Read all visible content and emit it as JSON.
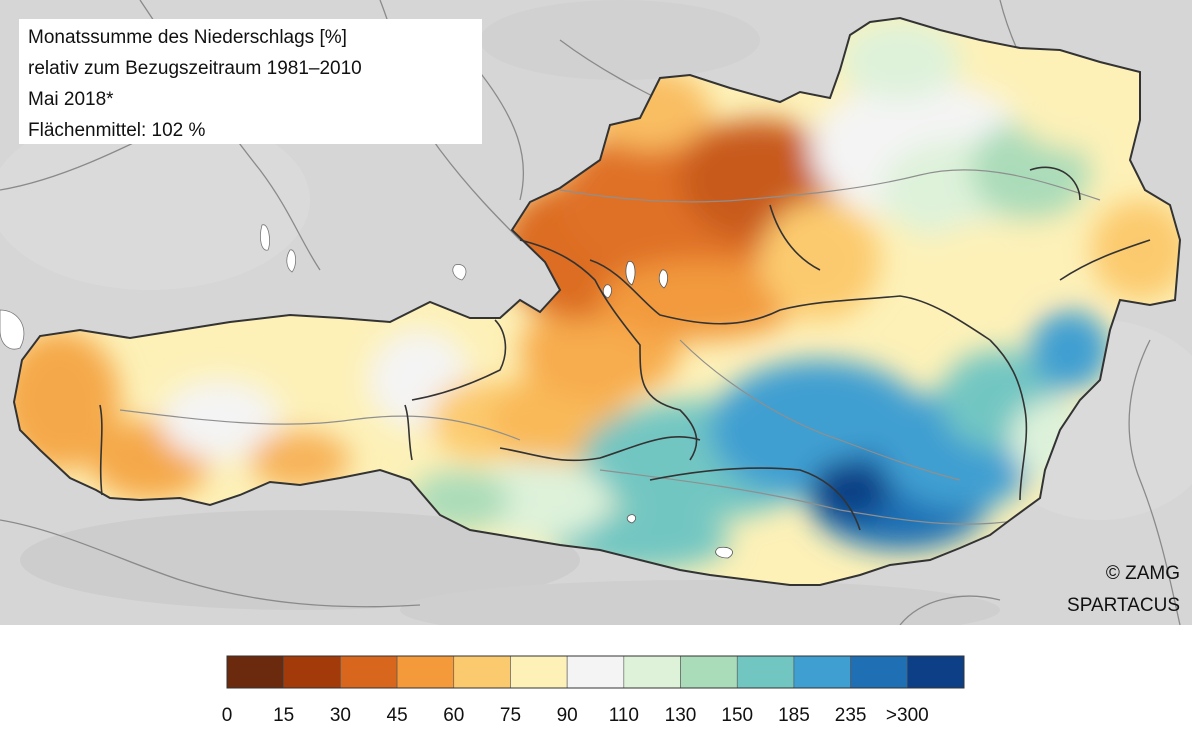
{
  "info": {
    "line1": "Monatssumme des Niederschlags [%]",
    "line2": "relativ zum Bezugszeitraum 1981–2010",
    "line3": "Mai 2018*",
    "line4": "Flächenmittel: 102 %"
  },
  "credits": {
    "line1": "© ZAMG",
    "line2": "SPARTACUS"
  },
  "legend": {
    "classes": [
      {
        "from": "0",
        "to": "15",
        "color": "#6b2a0e"
      },
      {
        "from": "15",
        "to": "30",
        "color": "#a33a0a"
      },
      {
        "from": "30",
        "to": "45",
        "color": "#d9661d"
      },
      {
        "from": "45",
        "to": "60",
        "color": "#f59a3a"
      },
      {
        "from": "60",
        "to": "75",
        "color": "#fcca6e"
      },
      {
        "from": "75",
        "to": "90",
        "color": "#fdf1b8"
      },
      {
        "from": "90",
        "to": "110",
        "color": "#f4f4f4"
      },
      {
        "from": "110",
        "to": "130",
        "color": "#def2da"
      },
      {
        "from": "130",
        "to": "150",
        "color": "#abdcb9"
      },
      {
        "from": "150",
        "to": "185",
        "color": "#72c6c2"
      },
      {
        "from": "185",
        "to": "235",
        "color": "#3f9fd1"
      },
      {
        "from": "235",
        "to": ">300",
        "color": "#1f6fb4"
      },
      {
        "from": ">300",
        "to": "",
        "color": "#0c3f85"
      }
    ],
    "tick_labels": [
      "0",
      "15",
      "30",
      "45",
      "60",
      "75",
      "90",
      "110",
      "130",
      "150",
      "185",
      "235",
      ">300"
    ]
  },
  "map_colors": {
    "background_relief": "#d6d6d6",
    "lakes": "#ffffff",
    "rivers": "#8a8a8a",
    "borders": "#333333"
  }
}
